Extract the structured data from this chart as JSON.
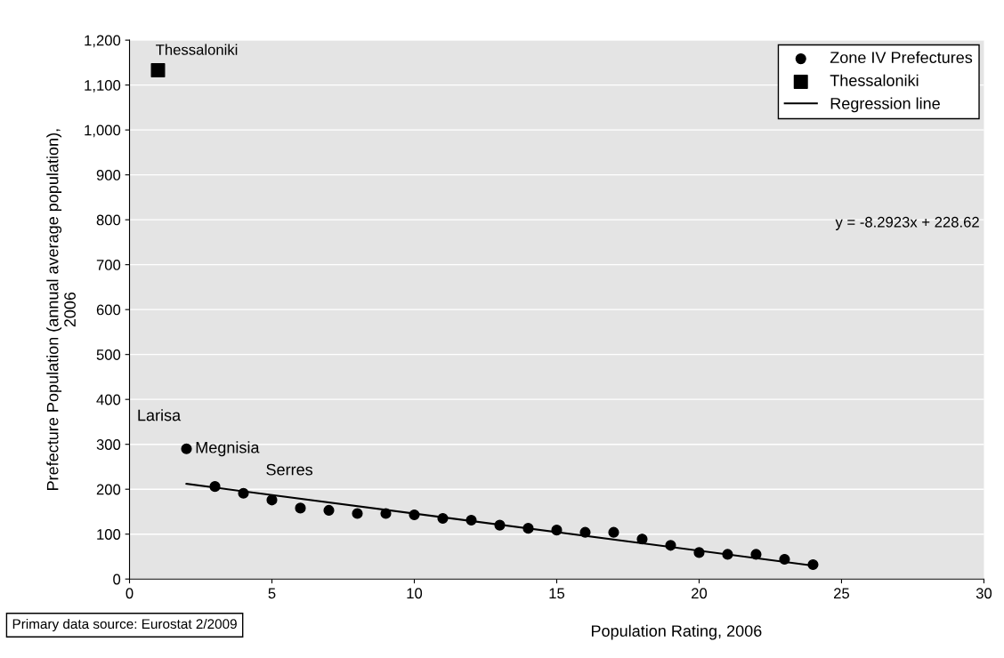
{
  "chart_data": {
    "type": "scatter",
    "xlabel": "Population Rating, 2006",
    "ylabel": "Prefecture Population (annual average population),\n2006",
    "xlim": [
      0,
      30
    ],
    "xticks": [
      0,
      5,
      10,
      15,
      20,
      25,
      30
    ],
    "ylim": [
      0,
      1200
    ],
    "yticks": [
      0,
      100,
      200,
      300,
      400,
      500,
      600,
      700,
      800,
      900,
      {
        "value": 1000,
        "label": "1,000"
      },
      {
        "value": 1100,
        "label": "1,100"
      },
      {
        "value": 1200,
        "label": "1,200"
      }
    ],
    "grid": "y",
    "legend": "top right",
    "series": [
      {
        "name": "Zone IV Prefectures",
        "marker": "circle",
        "color": "#000000",
        "x": [
          2,
          3,
          4,
          5,
          6,
          7,
          8,
          9,
          10,
          11,
          12,
          13,
          14,
          15,
          16,
          17,
          18,
          19,
          20,
          21,
          22,
          23,
          24
        ],
        "values": [
          290,
          206,
          191,
          176,
          158,
          153,
          146,
          146,
          143,
          135,
          131,
          120,
          113,
          109,
          104,
          104,
          89,
          75,
          59,
          55,
          55,
          44,
          32
        ]
      },
      {
        "name": "Thessaloniki",
        "marker": "square",
        "color": "#000000",
        "x": [
          1
        ],
        "values": [
          1133
        ]
      },
      {
        "name": "Regression line",
        "type": "line",
        "marker": "none",
        "color": "#000000",
        "x": [
          2,
          24
        ],
        "values": [
          212,
          30
        ]
      }
    ],
    "annotations": [
      {
        "text": "Thessaloniki",
        "x": 1,
        "y": 1133
      },
      {
        "text": "Larisa",
        "x": 2,
        "y": 290
      },
      {
        "text": "Megnisia",
        "x": 2,
        "y": 290
      },
      {
        "text": "Serres",
        "x": 4,
        "y": 191
      },
      "y = -8.2923x + 228.62",
      "Primary data source: Eurostat 2/2009"
    ]
  }
}
